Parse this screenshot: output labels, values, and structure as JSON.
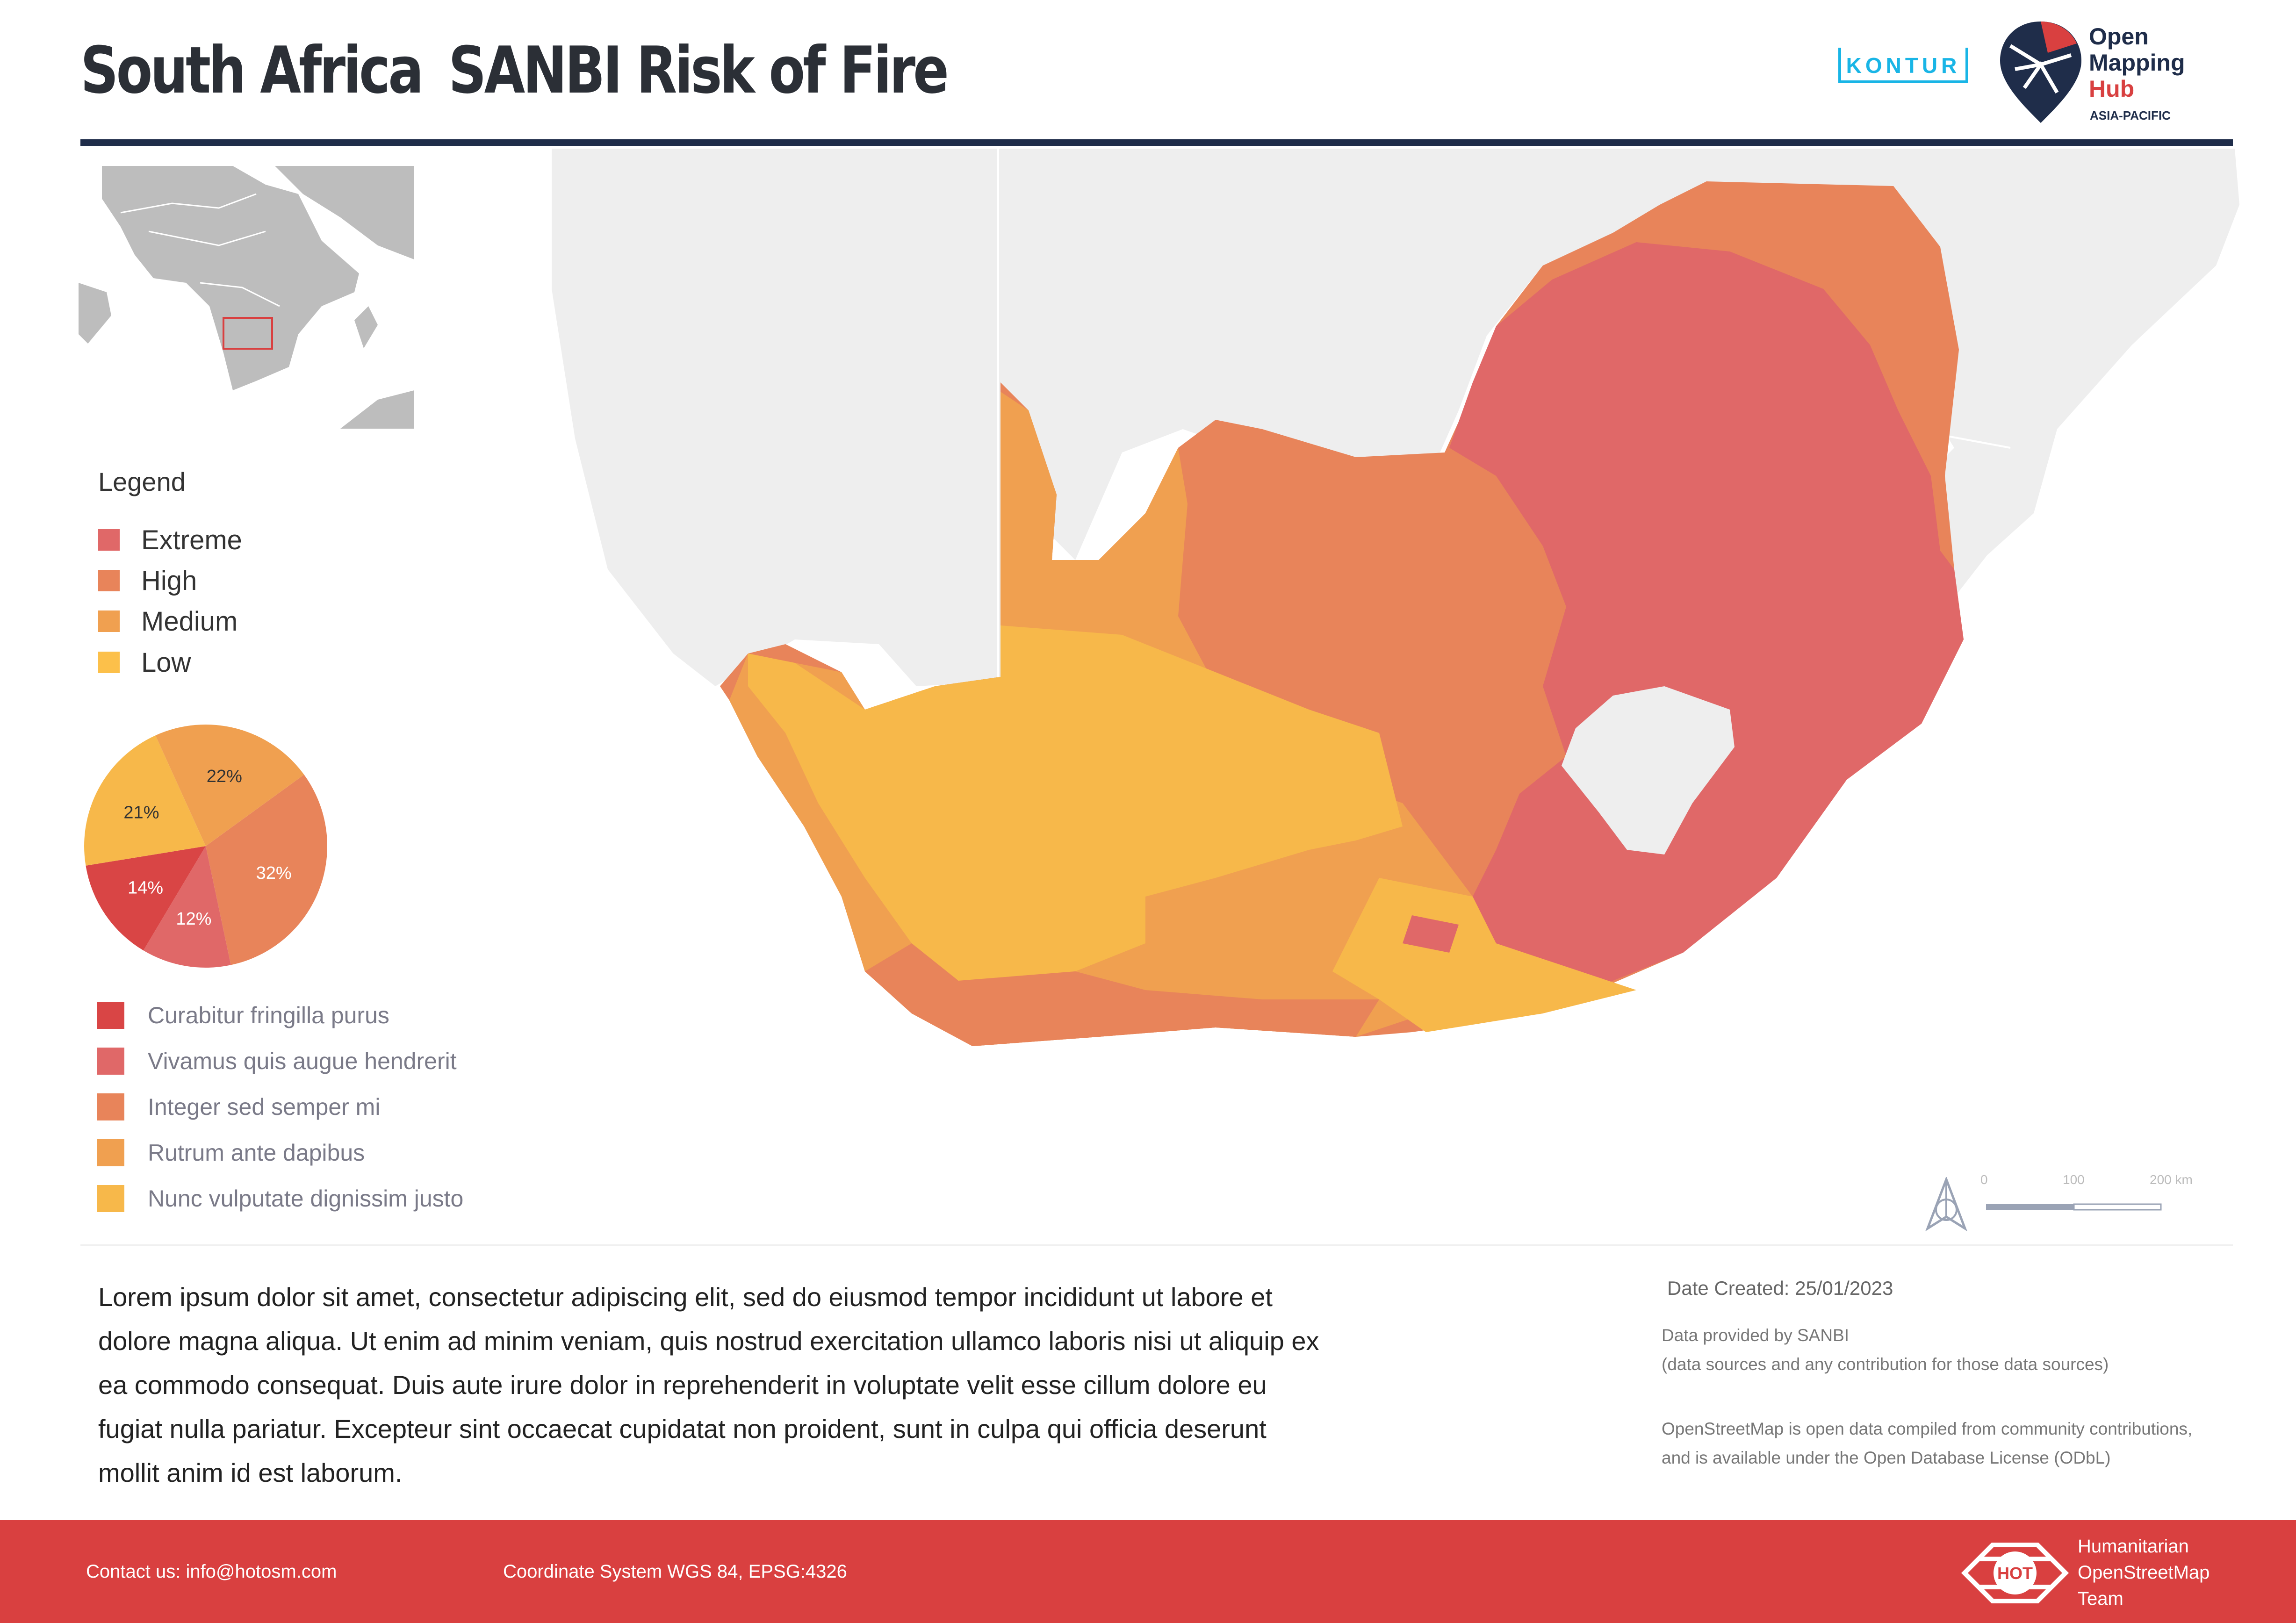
{
  "header": {
    "title_main": "South Africa",
    "title_sub": "SANBI Risk of Fire",
    "kontur_logo": "KONTUR",
    "omh_logo": {
      "line1": "Open",
      "line2": "Mapping",
      "line3": "Hub",
      "region": "ASIA-PACIFIC"
    }
  },
  "legend": {
    "title": "Legend",
    "items": [
      {
        "label": "Extreme",
        "color": "#e06868"
      },
      {
        "label": "High",
        "color": "#e8845a"
      },
      {
        "label": "Medium",
        "color": "#f0a050"
      },
      {
        "label": "Low",
        "color": "#fcc04a"
      }
    ]
  },
  "chart_data": {
    "type": "pie",
    "slices": [
      {
        "label": "32%",
        "value": 32,
        "color": "#e8845a"
      },
      {
        "label": "12%",
        "value": 12,
        "color": "#e06868"
      },
      {
        "label": "14%",
        "value": 14,
        "color": "#d94545"
      },
      {
        "label": "21%",
        "value": 21,
        "color": "#f7b84a"
      },
      {
        "label": "22%",
        "value": 22,
        "color": "#f0a050"
      }
    ],
    "legend": [
      {
        "label": "Curabitur fringilla purus",
        "color": "#d94545"
      },
      {
        "label": "Vivamus quis augue hendrerit",
        "color": "#e06868"
      },
      {
        "label": "Integer sed semper mi",
        "color": "#e8845a"
      },
      {
        "label": "Rutrum ante dapibus",
        "color": "#f0a050"
      },
      {
        "label": "Nunc vulputate dignissim justo",
        "color": "#f7b84a"
      }
    ]
  },
  "scale": {
    "labels": [
      "0",
      "100",
      "200 km"
    ]
  },
  "description": "Lorem ipsum dolor sit amet, consectetur adipiscing elit, sed do eiusmod tempor incididunt ut labore et dolore magna aliqua. Ut enim ad minim veniam, quis nostrud exercitation ullamco laboris nisi ut aliquip ex ea commodo consequat. Duis aute irure dolor in reprehenderit in voluptate velit esse cillum dolore eu fugiat nulla pariatur. Excepteur sint occaecat cupidatat non proident, sunt in culpa qui officia deserunt mollit anim id est laborum.",
  "meta": {
    "date_created": "Date Created: 25/01/2023",
    "data_provider": "Data provided by SANBI",
    "data_note": "(data sources and any contribution for those data sources)",
    "osm_note": "OpenStreetMap is open data compiled from community contributions, and is available under the Open Database License (ODbL)"
  },
  "footer": {
    "contact": "Contact us: info@hotosm.com",
    "crs": "Coordinate System WGS 84, EPSG:4326",
    "hot_line1": "Humanitarian",
    "hot_line2": "OpenStreetMap",
    "hot_line3": "Team",
    "hot_badge": "HOT"
  },
  "colors": {
    "land_gray": "#eeeeee",
    "extreme": "#e06868",
    "high": "#e8845a",
    "medium": "#f0a050",
    "low": "#f7b84a",
    "header_rule": "#1f2d4a",
    "footer_red": "#d94040"
  }
}
